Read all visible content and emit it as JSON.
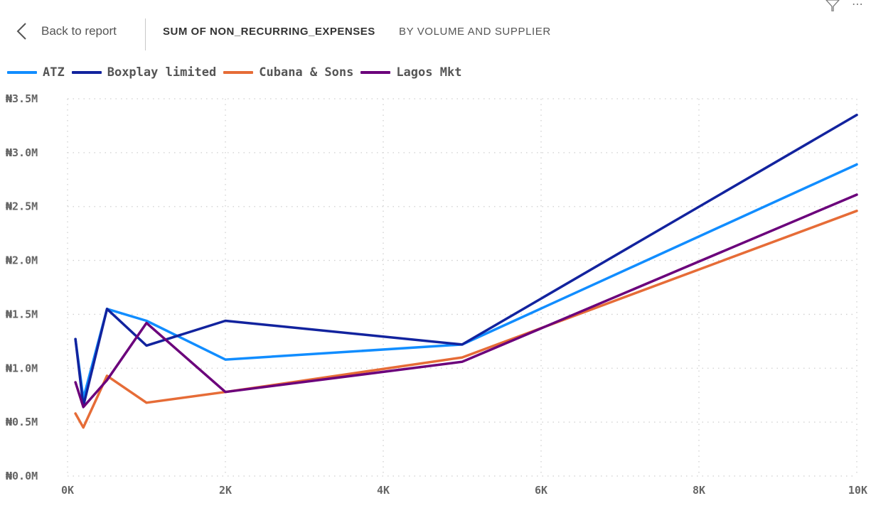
{
  "header": {
    "back_label": "Back to report",
    "title": "SUM OF NON_RECURRING_EXPENSES",
    "subtitle": "BY VOLUME AND SUPPLIER",
    "icons": [
      "chevron-left-icon",
      "filter-icon",
      "more-options-icon"
    ],
    "more_glyph": "⋯"
  },
  "chart_data": {
    "type": "line",
    "title": "SUM OF NON_RECURRING_EXPENSES",
    "subtitle": "BY VOLUME AND SUPPLIER",
    "legend_position": "top-left",
    "grid": true,
    "xlim": [
      0,
      10000
    ],
    "ylim": [
      0,
      3500000
    ],
    "x_ticks": [
      0,
      2000,
      4000,
      6000,
      8000,
      10000
    ],
    "x_tick_labels": [
      "0K",
      "2K",
      "4K",
      "6K",
      "8K",
      "10K"
    ],
    "y_ticks": [
      0,
      500000,
      1000000,
      1500000,
      2000000,
      2500000,
      3000000,
      3500000
    ],
    "y_tick_labels": [
      "₦0.0M",
      "₦0.5M",
      "₦1.0M",
      "₦1.5M",
      "₦2.0M",
      "₦2.5M",
      "₦3.0M",
      "₦3.5M"
    ],
    "x": [
      100,
      200,
      500,
      1000,
      2000,
      5000,
      10000
    ],
    "series": [
      {
        "name": "ATZ",
        "color": "#118DFF",
        "values": [
          1270000,
          720000,
          1550000,
          1440000,
          1080000,
          1220000,
          2890000
        ]
      },
      {
        "name": "Boxplay limited",
        "color": "#12239E",
        "values": [
          1270000,
          650000,
          1550000,
          1210000,
          1440000,
          1220000,
          3350000
        ]
      },
      {
        "name": "Cubana & Sons",
        "color": "#E66C37",
        "values": [
          580000,
          450000,
          930000,
          680000,
          780000,
          1100000,
          2460000
        ]
      },
      {
        "name": "Lagos Mkt",
        "color": "#6B007B",
        "values": [
          870000,
          640000,
          890000,
          1420000,
          780000,
          1060000,
          2610000
        ]
      }
    ]
  }
}
